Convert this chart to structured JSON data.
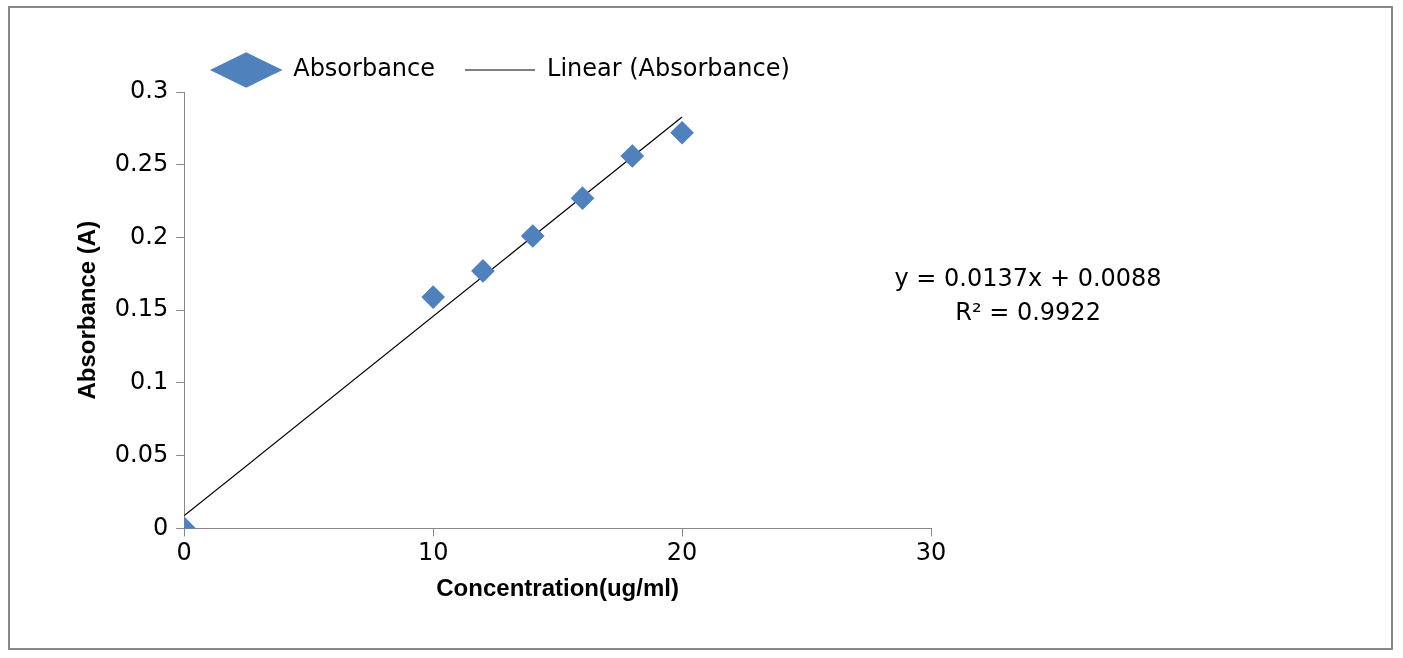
{
  "chart_data": {
    "type": "scatter",
    "xlabel": "Concentration(ug/ml)",
    "ylabel": "Absorbance (A)",
    "x": [
      0,
      10,
      12,
      14,
      16,
      18,
      20
    ],
    "series": [
      {
        "name": "Absorbance",
        "color": "#4f81bd",
        "values": [
          0,
          0.159,
          0.177,
          0.201,
          0.227,
          0.256,
          0.272
        ],
        "marker": "diamond"
      },
      {
        "name": "Linear (Absorbance)",
        "type": "line",
        "color": "#000000",
        "x": [
          0,
          20
        ],
        "values": [
          0.0088,
          0.2828
        ],
        "marker": "none"
      }
    ],
    "xlim": [
      0,
      30
    ],
    "xticks": [
      0,
      10,
      20,
      30
    ],
    "ylim": [
      0,
      0.3
    ],
    "yticks": [
      0,
      0.05,
      0.1,
      0.15,
      0.2,
      0.25,
      0.3
    ],
    "grid": false,
    "legend": "top",
    "annotations": [
      "y = 0.0137x + 0.0088",
      "R² = 0.9922"
    ]
  }
}
